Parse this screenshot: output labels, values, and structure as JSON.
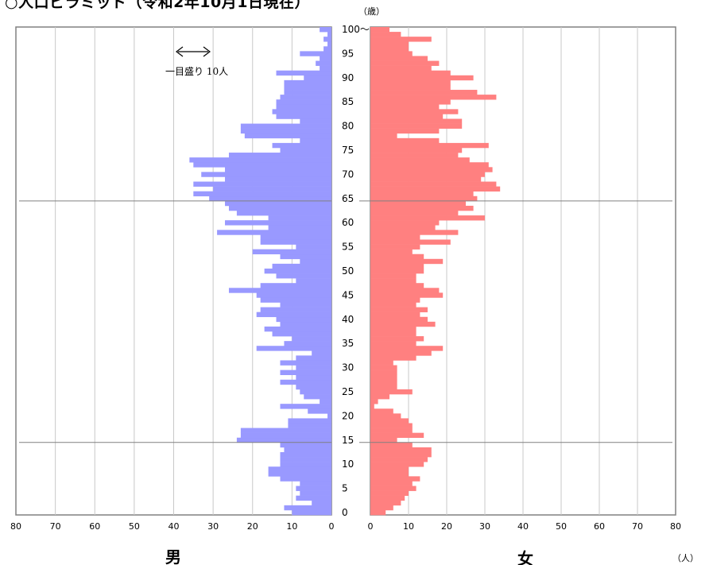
{
  "title": "○人口ピラミッド（令和2年10月1日現在）",
  "chart_data": {
    "type": "bar",
    "orientation": "horizontal-pyramid",
    "title": "○人口ピラミッド（令和2年10月1日現在）",
    "age_unit_label": "（歳）",
    "count_unit_label": "（人）",
    "scale_note": "一目盛り 10人",
    "male_label": "男",
    "female_label": "女",
    "xlim": [
      0,
      80
    ],
    "x_ticks": [
      "0",
      "10",
      "20",
      "30",
      "40",
      "50",
      "60",
      "70",
      "80"
    ],
    "age_ticks": [
      "0",
      "5",
      "10",
      "15",
      "20",
      "25",
      "30",
      "35",
      "40",
      "45",
      "50",
      "55",
      "60",
      "65",
      "70",
      "75",
      "80",
      "85",
      "90",
      "95",
      "100～"
    ],
    "reference_ages": [
      15,
      65
    ],
    "ages": [
      0,
      1,
      2,
      3,
      4,
      5,
      6,
      7,
      8,
      9,
      10,
      11,
      12,
      13,
      14,
      15,
      16,
      17,
      18,
      19,
      20,
      21,
      22,
      23,
      24,
      25,
      26,
      27,
      28,
      29,
      30,
      31,
      32,
      33,
      34,
      35,
      36,
      37,
      38,
      39,
      40,
      41,
      42,
      43,
      44,
      45,
      46,
      47,
      48,
      49,
      50,
      51,
      52,
      53,
      54,
      55,
      56,
      57,
      58,
      59,
      60,
      61,
      62,
      63,
      64,
      65,
      66,
      67,
      68,
      69,
      70,
      71,
      72,
      73,
      74,
      75,
      76,
      77,
      78,
      79,
      80,
      81,
      82,
      83,
      84,
      85,
      86,
      87,
      88,
      89,
      90,
      91,
      92,
      93,
      94,
      95,
      96,
      97,
      98,
      99,
      100
    ],
    "series": [
      {
        "name": "男",
        "color": "#9999ff",
        "values": [
          10,
          12,
          5,
          9,
          8,
          9,
          8,
          13,
          16,
          16,
          13,
          13,
          13,
          12,
          13,
          24,
          23,
          23,
          11,
          11,
          1,
          6,
          13,
          3,
          7,
          8,
          9,
          13,
          9,
          13,
          9,
          13,
          9,
          5,
          19,
          12,
          10,
          15,
          17,
          13,
          14,
          19,
          18,
          13,
          18,
          19,
          26,
          18,
          9,
          14,
          17,
          15,
          8,
          13,
          20,
          9,
          18,
          18,
          29,
          16,
          27,
          16,
          24,
          26,
          27,
          31,
          35,
          30,
          35,
          27,
          33,
          27,
          35,
          36,
          26,
          13,
          15,
          8,
          22,
          23,
          23,
          8,
          14,
          15,
          14,
          14,
          13,
          12,
          12,
          12,
          7,
          14,
          3,
          4,
          3,
          8,
          2,
          1,
          2,
          1,
          3
        ]
      },
      {
        "name": "女",
        "color": "#ff8080",
        "values": [
          4,
          6,
          8,
          9,
          10,
          12,
          11,
          13,
          10,
          10,
          14,
          15,
          16,
          16,
          11,
          7,
          14,
          11,
          11,
          10,
          8,
          6,
          1,
          2,
          5,
          11,
          7,
          7,
          7,
          7,
          7,
          6,
          12,
          16,
          19,
          12,
          14,
          12,
          12,
          17,
          15,
          13,
          15,
          12,
          13,
          19,
          18,
          14,
          12,
          12,
          14,
          14,
          19,
          14,
          11,
          13,
          21,
          13,
          23,
          17,
          18,
          30,
          23,
          27,
          25,
          28,
          27,
          34,
          33,
          29,
          30,
          32,
          31,
          26,
          23,
          24,
          31,
          18,
          7,
          18,
          24,
          24,
          19,
          23,
          18,
          21,
          33,
          28,
          21,
          21,
          27,
          21,
          16,
          18,
          15,
          11,
          10,
          10,
          16,
          8,
          5
        ]
      }
    ]
  }
}
